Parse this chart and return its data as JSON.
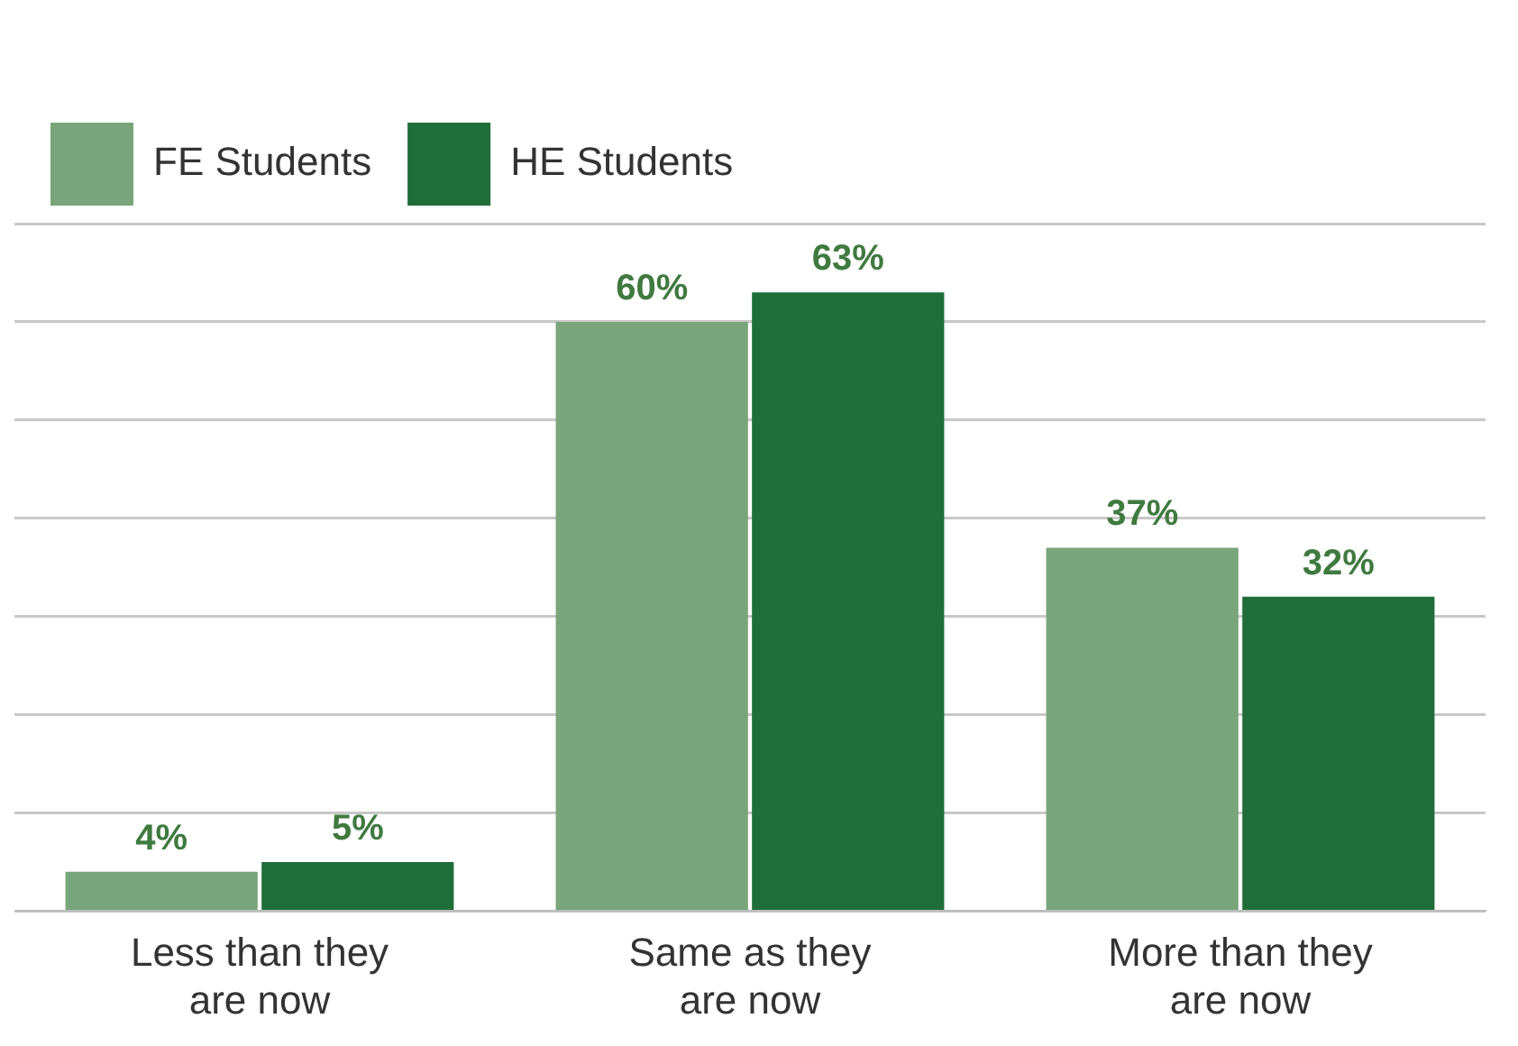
{
  "chart_data": {
    "type": "bar",
    "categories": [
      "Less than they are now",
      "Same as they are now",
      "More than they are now"
    ],
    "series": [
      {
        "name": "FE Students",
        "color": "#78a57a",
        "values": [
          4,
          60,
          37
        ],
        "value_labels": [
          "4%",
          "60%",
          "37%"
        ]
      },
      {
        "name": "HE Students",
        "color": "#1f6e3a",
        "values": [
          5,
          63,
          32
        ],
        "value_labels": [
          "5%",
          "63%",
          "32%"
        ]
      }
    ],
    "tick_labels": "x",
    "grid": "y",
    "legend": "top left"
  }
}
